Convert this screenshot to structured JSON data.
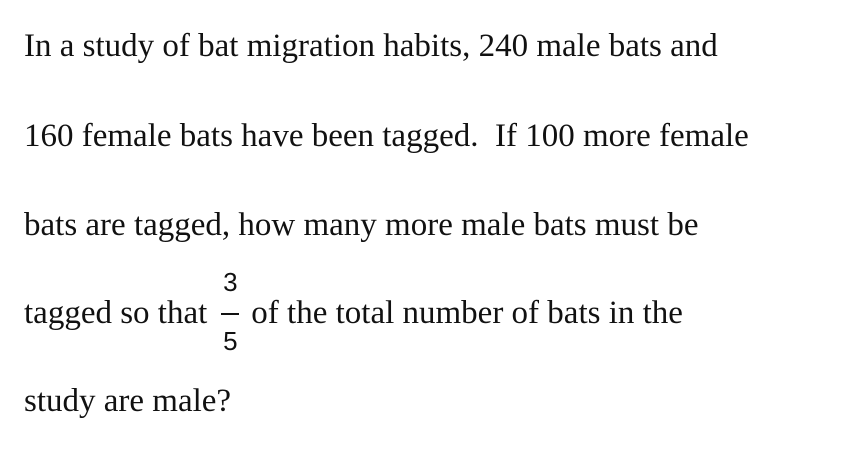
{
  "problem": {
    "line1": "In a study of bat migration habits, 240 male bats and",
    "line2": "160 female bats have been tagged.  If 100 more female",
    "line3": "bats are tagged, how many more male bats must be",
    "line4_before": "tagged so that",
    "fraction": {
      "numerator": "3",
      "denominator": "5"
    },
    "line4_after": "of the total number of bats in the",
    "line5": "study are male?"
  }
}
